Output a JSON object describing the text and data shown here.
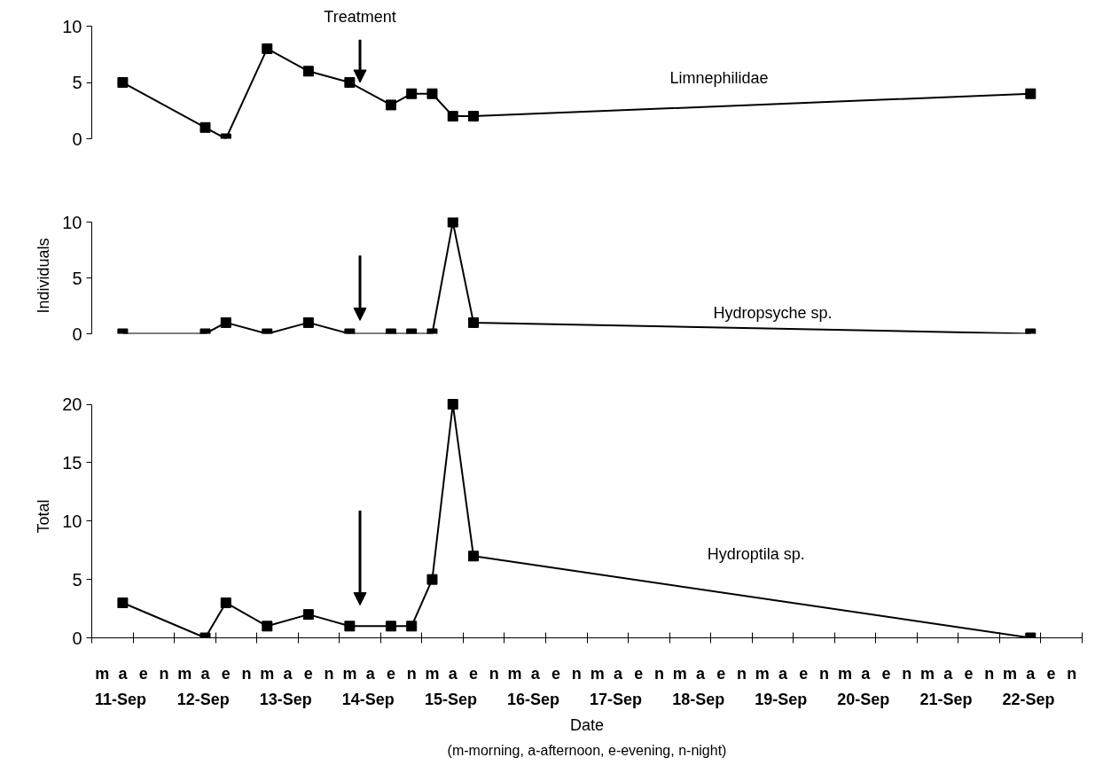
{
  "chart_data": [
    {
      "type": "line",
      "marker": "square",
      "line_style": "solid",
      "grid": false,
      "tick_labels": "y",
      "ylim": [
        0,
        10
      ],
      "yticks": [
        0,
        5,
        10
      ],
      "categories": [
        "m",
        "a",
        "e",
        "n",
        "m",
        "a",
        "e",
        "n",
        "m",
        "a",
        "e",
        "n",
        "m",
        "a",
        "e",
        "n",
        "m",
        "a",
        "e",
        "n",
        "m",
        "a",
        "e",
        "n",
        "m",
        "a",
        "e",
        "n",
        "m",
        "a",
        "e",
        "n",
        "m",
        "a",
        "e",
        "n",
        "m",
        "a",
        "e",
        "n",
        "m",
        "a",
        "e",
        "n",
        "m",
        "a",
        "e",
        "n"
      ],
      "annotations": [
        {
          "text": "Treatment",
          "y": 5
        }
      ],
      "series": [
        {
          "name": "Limnephilidae",
          "color": "#000000",
          "values": [
            null,
            5,
            null,
            null,
            null,
            1,
            0,
            null,
            8,
            null,
            6,
            null,
            5,
            null,
            3,
            4,
            4,
            2,
            2,
            null,
            null,
            null,
            null,
            null,
            null,
            null,
            null,
            null,
            null,
            null,
            null,
            null,
            null,
            null,
            null,
            null,
            null,
            null,
            null,
            null,
            null,
            null,
            null,
            null,
            null,
            4,
            null,
            null
          ]
        }
      ]
    },
    {
      "type": "line",
      "marker": "square",
      "line_style": "solid",
      "grid": false,
      "tick_labels": "y",
      "ylim": [
        0,
        10
      ],
      "yticks": [
        0,
        5,
        10
      ],
      "ylabel": "Individuals",
      "categories": [
        "m",
        "a",
        "e",
        "n",
        "m",
        "a",
        "e",
        "n",
        "m",
        "a",
        "e",
        "n",
        "m",
        "a",
        "e",
        "n",
        "m",
        "a",
        "e",
        "n",
        "m",
        "a",
        "e",
        "n",
        "m",
        "a",
        "e",
        "n",
        "m",
        "a",
        "e",
        "n",
        "m",
        "a",
        "e",
        "n",
        "m",
        "a",
        "e",
        "n",
        "m",
        "a",
        "e",
        "n",
        "m",
        "a",
        "e",
        "n"
      ],
      "series": [
        {
          "name": "Hydropsyche sp.",
          "color": "#000000",
          "values": [
            null,
            0,
            null,
            null,
            null,
            0,
            1,
            null,
            0,
            null,
            1,
            null,
            0,
            null,
            0,
            0,
            0,
            10,
            1,
            null,
            null,
            null,
            null,
            null,
            null,
            null,
            null,
            null,
            null,
            null,
            null,
            null,
            null,
            null,
            null,
            null,
            null,
            null,
            null,
            null,
            null,
            null,
            null,
            null,
            null,
            0,
            null,
            null
          ]
        }
      ]
    },
    {
      "type": "line",
      "marker": "square",
      "line_style": "solid",
      "grid": false,
      "ylim": [
        0,
        20
      ],
      "yticks": [
        0,
        5,
        10,
        15,
        20
      ],
      "ylabel": "Total",
      "xlabel": "Date",
      "categories": [
        "m",
        "a",
        "e",
        "n",
        "m",
        "a",
        "e",
        "n",
        "m",
        "a",
        "e",
        "n",
        "m",
        "a",
        "e",
        "n",
        "m",
        "a",
        "e",
        "n",
        "m",
        "a",
        "e",
        "n",
        "m",
        "a",
        "e",
        "n",
        "m",
        "a",
        "e",
        "n",
        "m",
        "a",
        "e",
        "n",
        "m",
        "a",
        "e",
        "n",
        "m",
        "a",
        "e",
        "n",
        "m",
        "a",
        "e",
        "n"
      ],
      "annotations": [
        "11-Sep",
        "12-Sep",
        "13-Sep",
        "14-Sep",
        "15-Sep",
        "16-Sep",
        "17-Sep",
        "18-Sep",
        "19-Sep",
        "20-Sep",
        "21-Sep",
        "22-Sep",
        "(m-morning, a-afternoon, e-evening, n-night)"
      ],
      "series": [
        {
          "name": "Hydroptila sp.",
          "color": "#000000",
          "values": [
            null,
            3,
            null,
            null,
            null,
            0,
            3,
            null,
            1,
            null,
            2,
            null,
            1,
            null,
            1,
            1,
            5,
            20,
            7,
            null,
            null,
            null,
            null,
            null,
            null,
            null,
            null,
            null,
            null,
            null,
            null,
            null,
            null,
            null,
            null,
            null,
            null,
            null,
            null,
            null,
            null,
            null,
            null,
            null,
            null,
            0,
            null,
            null
          ]
        }
      ]
    }
  ]
}
